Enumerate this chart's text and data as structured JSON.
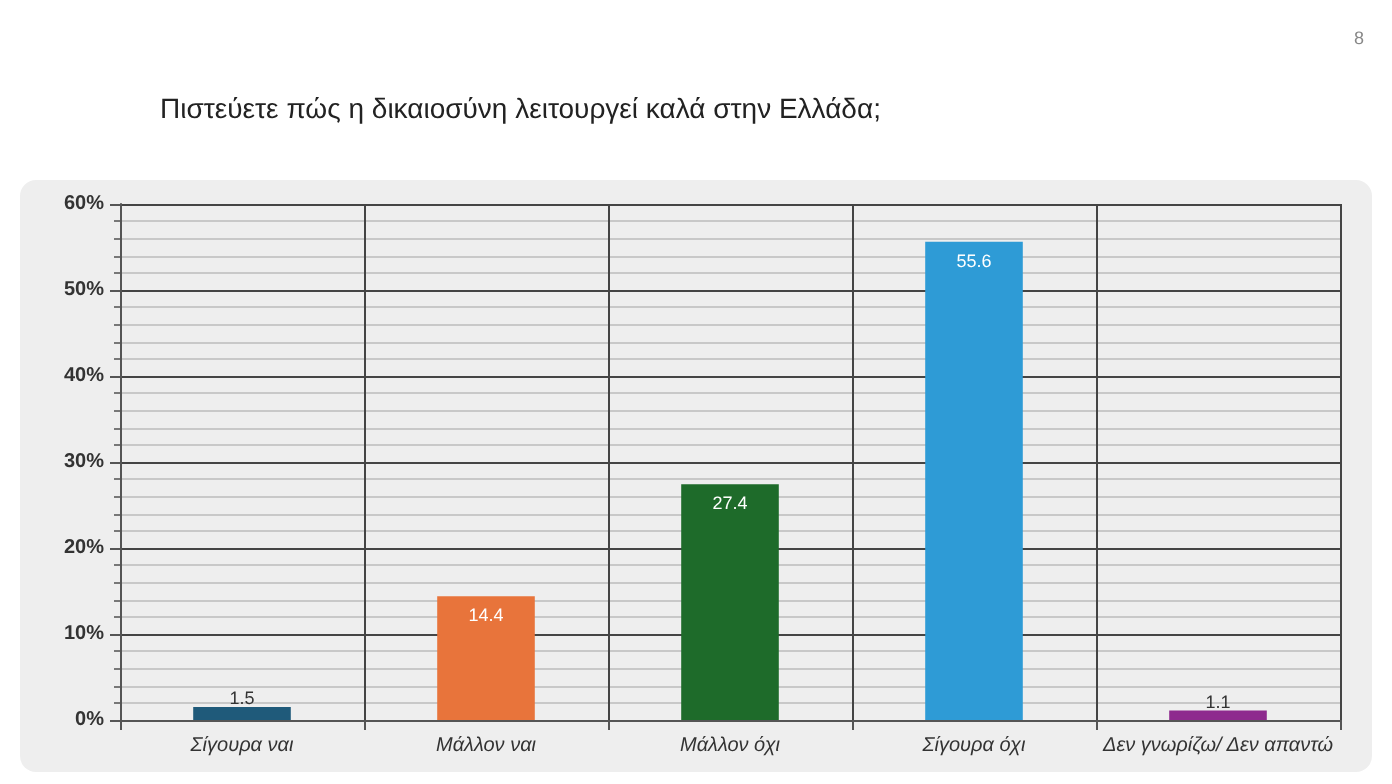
{
  "chart_data": {
    "type": "bar",
    "title": "Πιστεύετε πώς η δικαιοσύνη λειτουργεί καλά στην Ελλάδα;",
    "annotations": [
      "8"
    ],
    "categories": [
      "Σίγουρα ναι",
      "Μάλλον ναι",
      "Μάλλον όχι",
      "Σίγουρα όχι",
      "Δεν γνωρίζω/ Δεν απαντώ"
    ],
    "values": [
      1.5,
      14.4,
      27.4,
      55.6,
      1.1
    ],
    "colors": [
      "#1f5a7a",
      "#e8743b",
      "#1e6b2a",
      "#2e9bd6",
      "#8e2a8e"
    ],
    "ylim": [
      0,
      60
    ],
    "yticks": [
      {
        "value": 0,
        "label": "0%"
      },
      {
        "value": 10,
        "label": "10%"
      },
      {
        "value": 20,
        "label": "20%"
      },
      {
        "value": 30,
        "label": "30%"
      },
      {
        "value": 40,
        "label": "40%"
      },
      {
        "value": 50,
        "label": "50%"
      },
      {
        "value": 60,
        "label": "60%"
      }
    ],
    "grid": true,
    "data_labels": true
  }
}
